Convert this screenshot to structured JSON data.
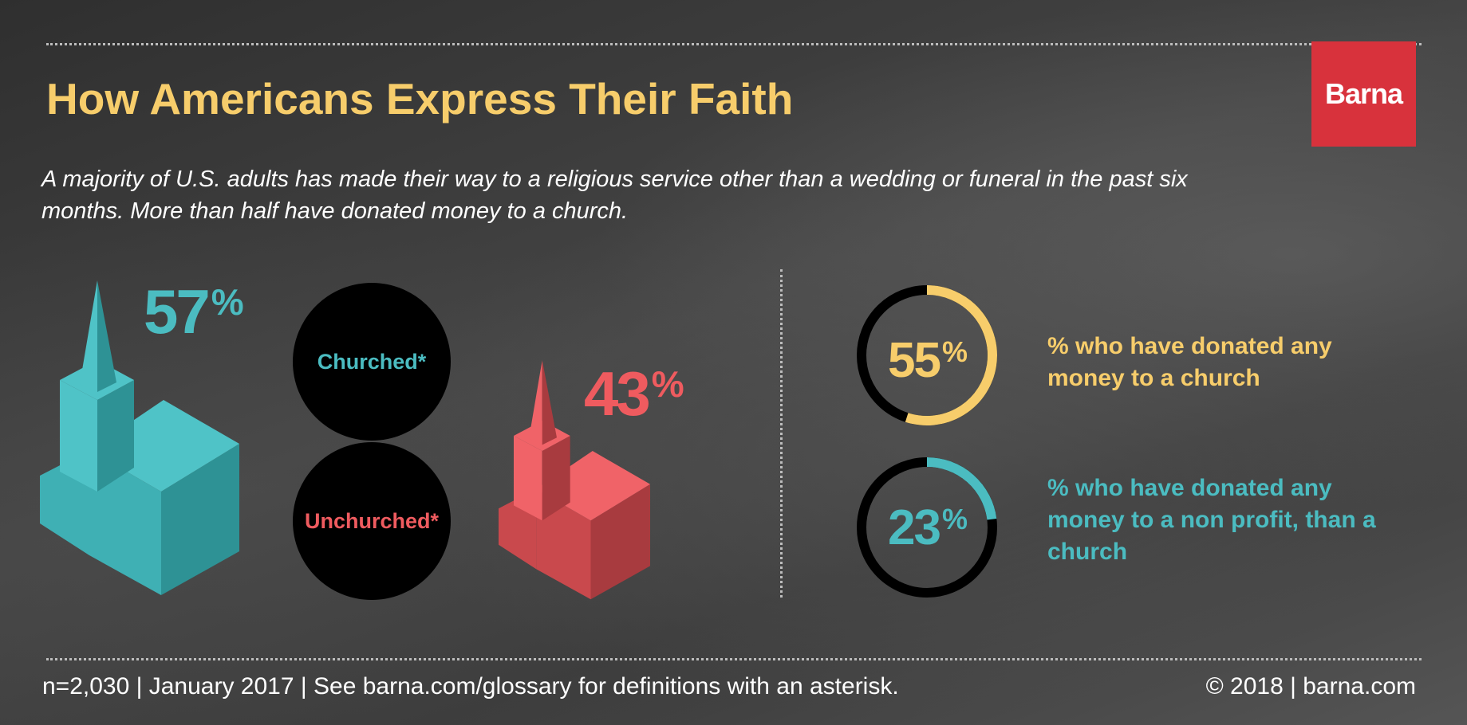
{
  "header": {
    "title": "How Americans Express Their Faith",
    "subtitle": "A majority of U.S. adults has made their way to a religious service other than a wedding or funeral in the past six months. More than half have donated money to a church.",
    "logo": "Barna"
  },
  "colors": {
    "teal": "#4bbcc1",
    "coral": "#ef5b5f",
    "yellow": "#f7cd6b",
    "logo_red": "#d8323c"
  },
  "icons": [
    "church-icon"
  ],
  "attendance": {
    "churched": {
      "value": "57",
      "symbol": "%",
      "label": "Churched*"
    },
    "unchurched": {
      "value": "43",
      "symbol": "%",
      "label": "Unchurched*"
    }
  },
  "giving": {
    "church": {
      "value": "55",
      "symbol": "%",
      "label": "% who have donated any money to a church"
    },
    "nonprofit": {
      "value": "23",
      "symbol": "%",
      "label": "% who have donated any money to a non profit, than a church"
    }
  },
  "chart_data": [
    {
      "type": "bar",
      "categories": [
        "Churched*",
        "Unchurched*"
      ],
      "values": [
        57,
        43
      ],
      "unit": "%"
    },
    {
      "type": "pie",
      "categories": [
        "% who have donated any money to a church",
        "% who have donated any money to a non profit, than a church"
      ],
      "values": [
        55,
        23
      ],
      "unit": "%"
    }
  ],
  "footer": {
    "left": "n=2,030 | January 2017 | See barna.com/glossary for definitions with an asterisk.",
    "right": "© 2018 | barna.com"
  }
}
